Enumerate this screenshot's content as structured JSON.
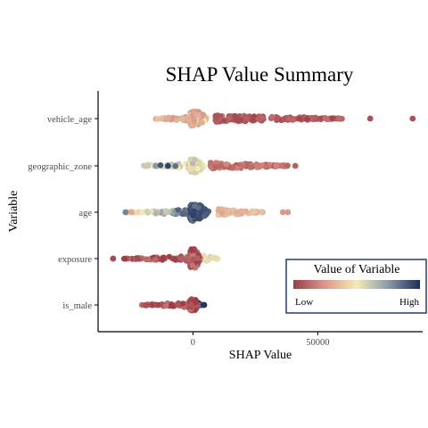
{
  "chart_data": {
    "type": "scatter",
    "subtype": "shap-beeswarm",
    "title": "SHAP Value Summary",
    "xlabel": "SHAP Value",
    "ylabel": "Variable",
    "xlim": [
      -38000,
      92000
    ],
    "xticks": [
      0,
      50000
    ],
    "xtick_labels": [
      "0",
      "50000"
    ],
    "categories": [
      "vehicle_age",
      "geographic_zone",
      "age",
      "exposure",
      "is_male"
    ],
    "grid": false,
    "legend": {
      "title": "Value of Variable",
      "low_label": "Low",
      "high_label": "High",
      "placement": "bottom-right",
      "gradient": [
        "#9e3d4a",
        "#d89a8a",
        "#f5eab9",
        "#8a9aa8",
        "#1b2e5a"
      ]
    },
    "series": [
      {
        "category": "vehicle_age",
        "core_range": [
          -15000,
          9000
        ],
        "spread": 9,
        "tail": {
          "from": 9000,
          "to": 60000,
          "color_value": 0.08
        },
        "core_color_value": 0.25,
        "outliers": [
          {
            "x": 71000,
            "v": 0.05
          },
          {
            "x": 88000,
            "v": 0.05
          }
        ]
      },
      {
        "category": "geographic_zone",
        "core_range": [
          -20000,
          7000
        ],
        "spread": 8,
        "tail": {
          "from": 7000,
          "to": 38000,
          "color_value": 0.15
        },
        "core_color_value": 0.55,
        "left_points": [
          {
            "x": -18000,
            "v": 0.6
          },
          {
            "x": -15000,
            "v": 0.75
          },
          {
            "x": -13000,
            "v": 0.9
          },
          {
            "x": -10000,
            "v": 0.95
          },
          {
            "x": -7000,
            "v": 0.85
          }
        ],
        "outliers": [
          {
            "x": 41000,
            "v": 0.1
          }
        ]
      },
      {
        "category": "age",
        "core_range": [
          -27000,
          10000
        ],
        "spread": 10,
        "tail": {
          "from": 10000,
          "to": 28000,
          "color_value": 0.35
        },
        "core_color_value": 0.85,
        "outliers": [
          {
            "x": 36000,
            "v": 0.25
          },
          {
            "x": 38000,
            "v": 0.25
          },
          {
            "x": -27000,
            "v": 0.8
          }
        ]
      },
      {
        "category": "exposure",
        "core_range": [
          -28000,
          4000
        ],
        "spread": 11,
        "tail": {
          "from": 4000,
          "to": 10000,
          "color_value": 0.5
        },
        "core_color_value": 0.05,
        "outliers": [
          {
            "x": -32000,
            "v": 0.03
          },
          {
            "x": 9500,
            "v": 0.45
          }
        ]
      },
      {
        "category": "is_male",
        "core_range": [
          -21000,
          2000
        ],
        "spread": 7,
        "tail": {
          "from": 1000,
          "to": 4000,
          "color_value": 0.95
        },
        "core_color_value": 0.05,
        "outliers": [
          {
            "x": 4500,
            "v": 0.98
          }
        ]
      }
    ]
  }
}
